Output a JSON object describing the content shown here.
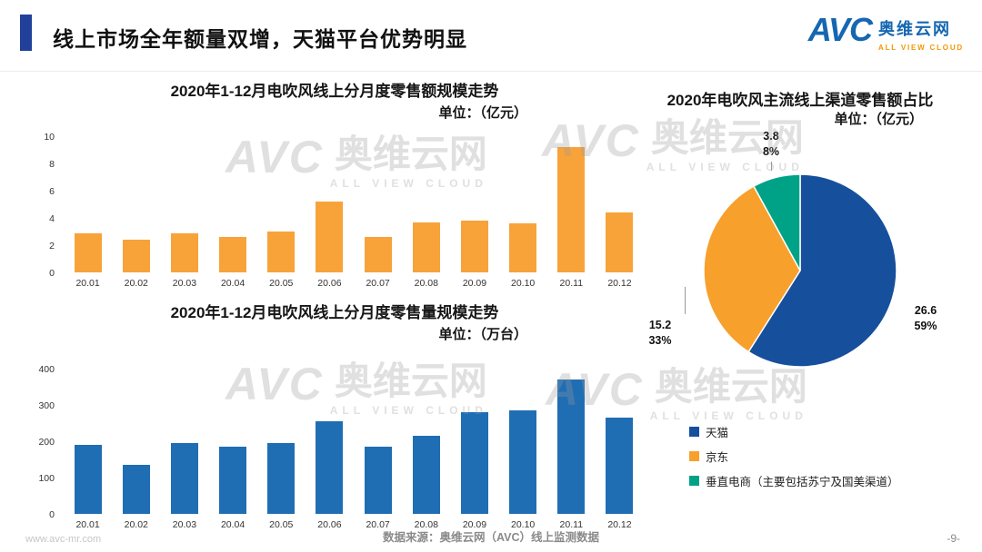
{
  "header": {
    "title": "线上市场全年额量双增，天猫平台优势明显"
  },
  "logo": {
    "abbr": "AVC",
    "name": "奥维云网",
    "tagline": "ALL VIEW CLOUD"
  },
  "watermark": {
    "abbr": "AVC",
    "name": "奥维云网",
    "tagline": "ALL VIEW CLOUD"
  },
  "footer": {
    "website": "www.avc-mr.com",
    "source": "数据来源：奥维云网（AVC）线上监测数据",
    "page_number": "-9-"
  },
  "colors": {
    "accent_bar": "#21409A",
    "logo_blue": "#1667B1",
    "logo_orange": "#F39800",
    "bar_orange": "#F7A33A",
    "bar_blue": "#1F6EB4",
    "pie_blue": "#164F9C",
    "pie_orange": "#F7A02B",
    "pie_teal": "#00A287"
  },
  "chart_data": [
    {
      "type": "bar",
      "title": "2020年1-12月电吹风线上分月度零售额规模走势",
      "unit_label": "单位：（亿元）",
      "categories": [
        "20.01",
        "20.02",
        "20.03",
        "20.04",
        "20.05",
        "20.06",
        "20.07",
        "20.08",
        "20.09",
        "20.10",
        "20.11",
        "20.12"
      ],
      "values": [
        2.9,
        2.4,
        2.9,
        2.6,
        3.0,
        5.2,
        2.6,
        3.7,
        3.8,
        3.6,
        9.2,
        4.4
      ],
      "ylim": [
        0,
        10
      ],
      "yticks": [
        0,
        2,
        4,
        6,
        8,
        10
      ],
      "bar_color": "#F7A33A",
      "grid": false,
      "legend_position": "none"
    },
    {
      "type": "bar",
      "title": "2020年1-12月电吹风线上分月度零售量规模走势",
      "unit_label": "单位：（万台）",
      "categories": [
        "20.01",
        "20.02",
        "20.03",
        "20.04",
        "20.05",
        "20.06",
        "20.07",
        "20.08",
        "20.09",
        "20.10",
        "20.11",
        "20.12"
      ],
      "values": [
        190,
        135,
        195,
        185,
        195,
        255,
        185,
        215,
        280,
        285,
        370,
        265
      ],
      "ylim": [
        0,
        400
      ],
      "yticks": [
        0,
        100,
        200,
        300,
        400
      ],
      "bar_color": "#1F6EB4",
      "grid": false,
      "legend_position": "none"
    },
    {
      "type": "pie",
      "title": "2020年电吹风主流线上渠道零售额占比",
      "unit_label": "单位：（亿元）",
      "slices": [
        {
          "label": "天猫",
          "value": 26.6,
          "percent": "59%",
          "color": "#164F9C"
        },
        {
          "label": "京东",
          "value": 15.2,
          "percent": "33%",
          "color": "#F7A02B"
        },
        {
          "label": "垂直电商（主要包括苏宁及国美渠道）",
          "value": 3.8,
          "percent": "8%",
          "color": "#00A287"
        }
      ],
      "legend_position": "bottom-right-of-page"
    }
  ]
}
